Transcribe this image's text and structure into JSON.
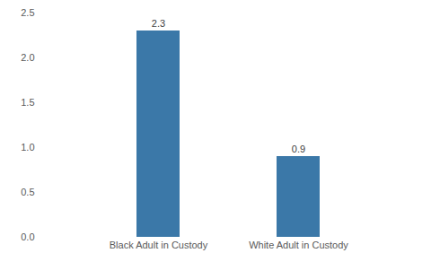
{
  "chart_data": {
    "type": "bar",
    "categories": [
      "Black Adult in Custody",
      "White Adult in Custody"
    ],
    "values": [
      2.3,
      0.9
    ],
    "color": "#3b78a8",
    "ylim": [
      0,
      2.5
    ],
    "yticks": [
      {
        "value": 0,
        "label": "0.0"
      },
      0.5,
      {
        "value": 1,
        "label": "1.0"
      },
      1.5,
      {
        "value": 2,
        "label": "2.0"
      },
      2.5
    ],
    "grid": false,
    "data_labels": true
  }
}
